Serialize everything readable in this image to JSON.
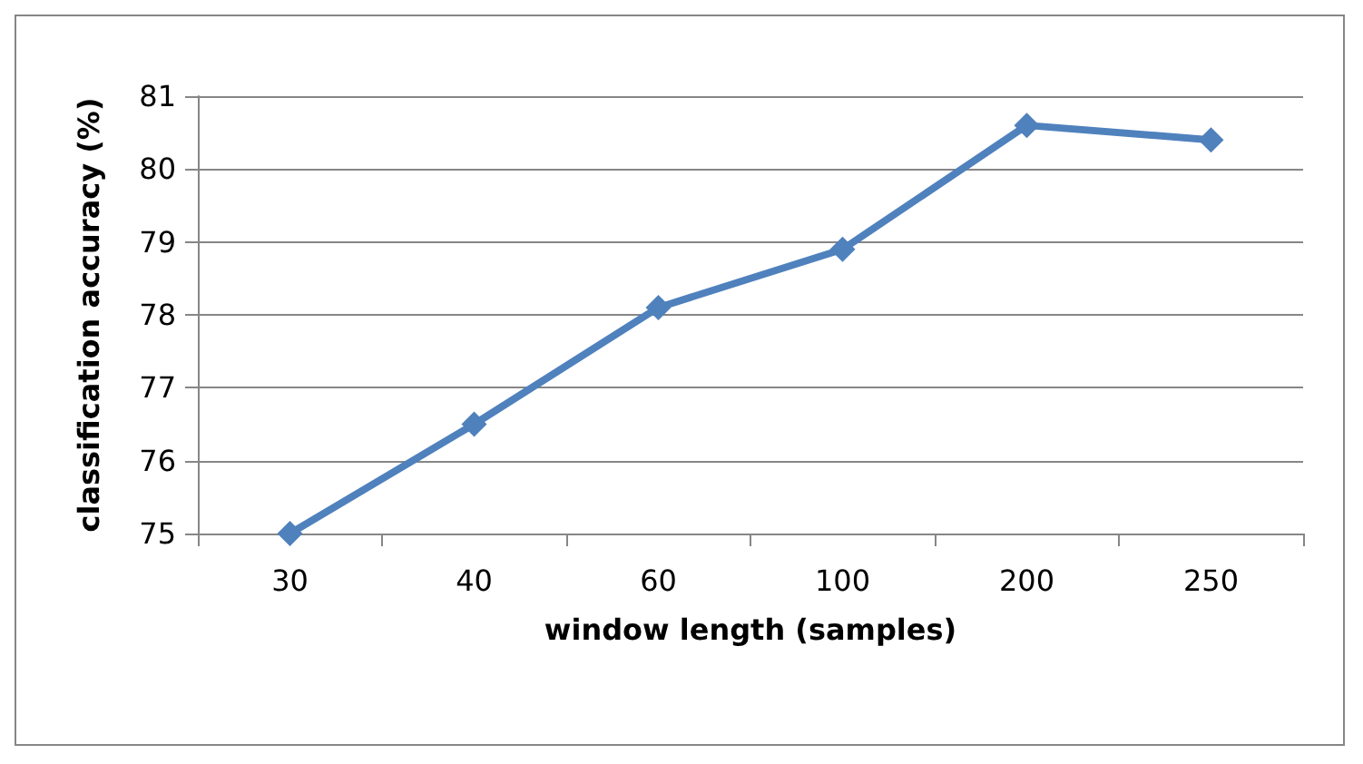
{
  "chart_data": {
    "type": "line",
    "xlabel": "window length (samples)",
    "ylabel": "classification accuracy (%)",
    "categories": [
      "30",
      "40",
      "60",
      "100",
      "200",
      "250"
    ],
    "series": [
      {
        "color": "#4f81bd",
        "values": [
          75.0,
          76.5,
          78.1,
          78.9,
          80.6,
          80.4
        ]
      }
    ],
    "ylim": [
      75,
      81
    ],
    "yticks": [
      75,
      76,
      77,
      78,
      79,
      80,
      81
    ],
    "grid": "y",
    "marker": "diamond",
    "line_style": "solid"
  }
}
